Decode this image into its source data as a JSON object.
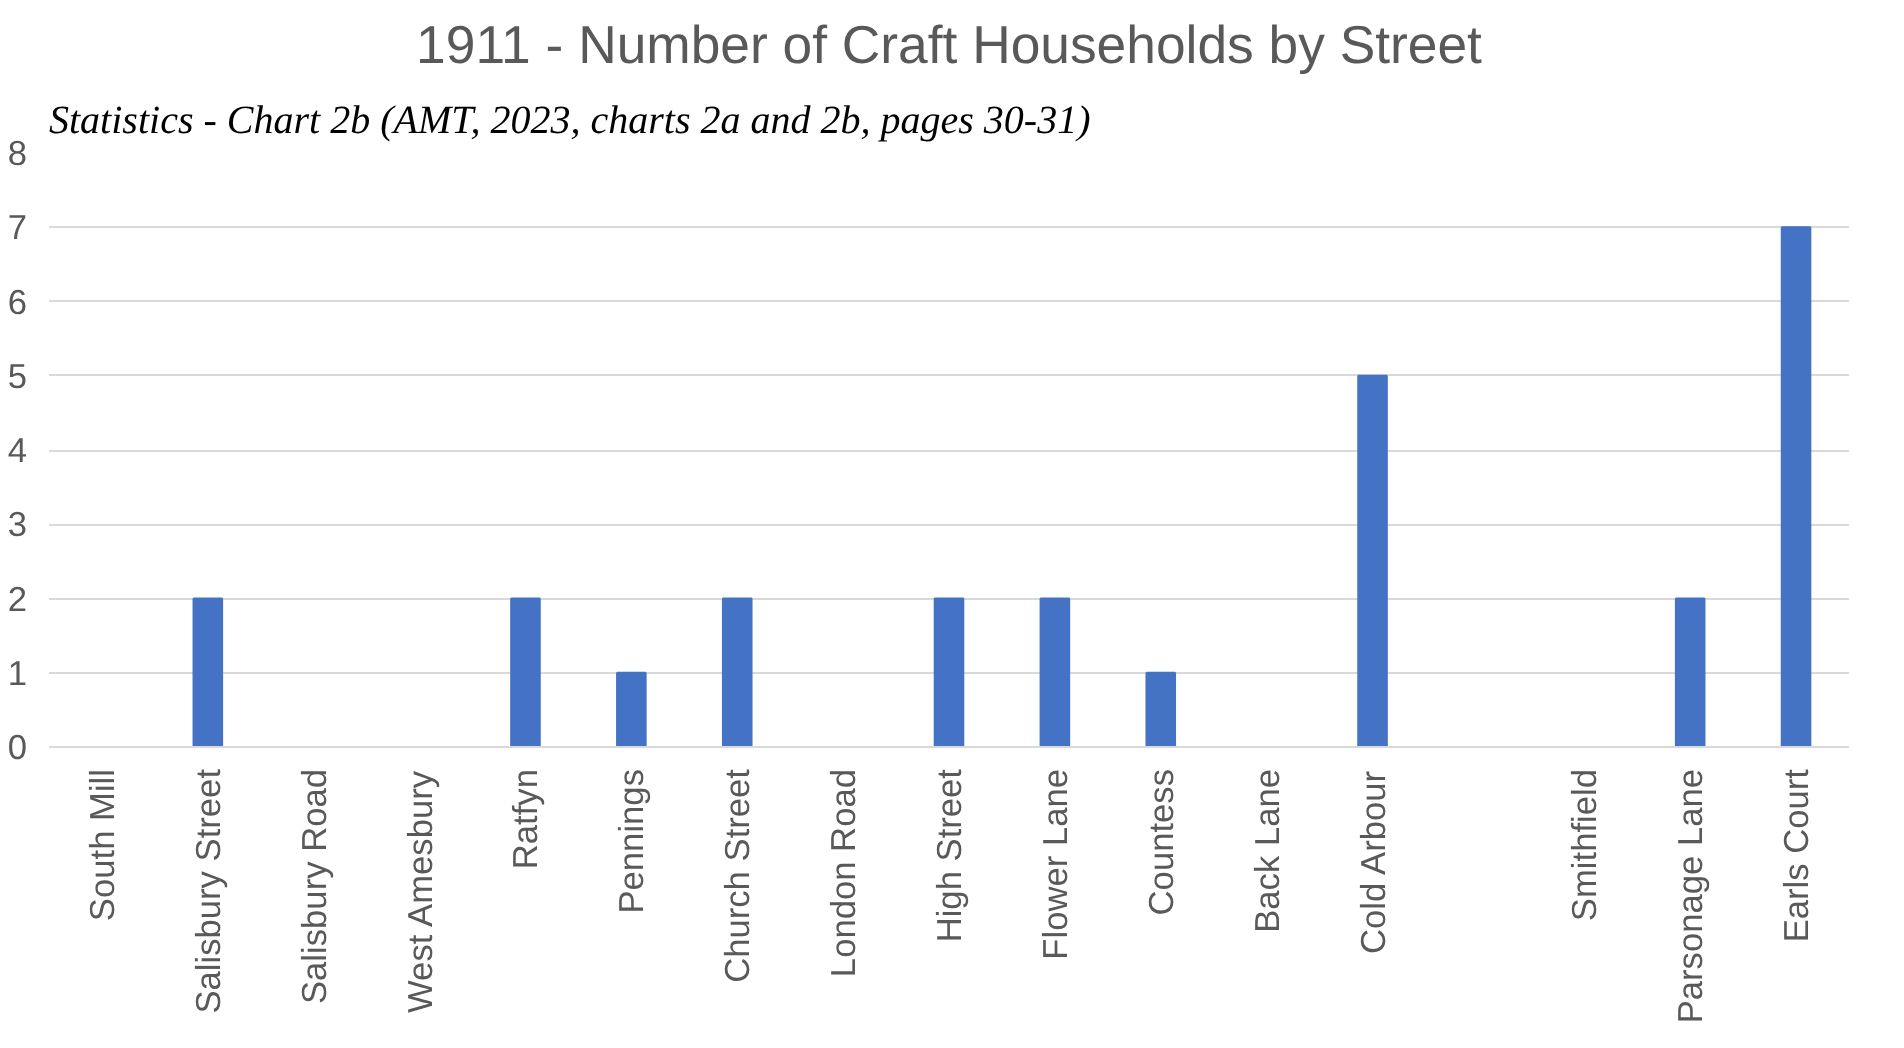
{
  "chart_data": {
    "type": "bar",
    "title": "1911 - Number of Craft Households by Street",
    "annotations": [
      "Statistics - Chart 2b (AMT, 2023, charts 2a and 2b, pages 30-31)"
    ],
    "categories": [
      "South Mill",
      "Salisbury Street",
      "Salisbury Road",
      "West Amesbury",
      "Ratfyn",
      "Pennings",
      "Church Street",
      "London Road",
      "High Street",
      "Flower Lane",
      "Countess",
      "Back Lane",
      "Cold Arbour",
      null,
      "Smithfield",
      "Parsonage Lane",
      "Earls Court"
    ],
    "values": [
      0,
      2,
      0,
      0,
      2,
      1,
      2,
      0,
      2,
      2,
      1,
      0,
      5,
      0,
      0,
      2,
      7
    ],
    "color": "#4472c4",
    "ylim": [
      0,
      8
    ],
    "yticks": [
      0,
      1,
      2,
      3,
      4,
      5,
      6,
      7,
      8
    ],
    "grid": "y"
  }
}
